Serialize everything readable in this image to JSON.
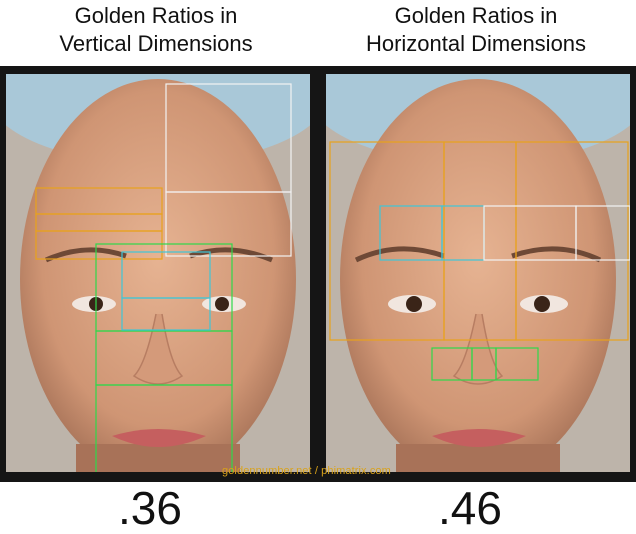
{
  "titles": {
    "left": {
      "line1": "Golden Ratios in",
      "line2": "Vertical Dimensions"
    },
    "right": {
      "line1": "Golden Ratios in",
      "line2": "Horizontal Dimensions"
    }
  },
  "credit": "goldennumber.net / phimatrix.com",
  "ratios": {
    "left": ".36",
    "right": ".46"
  },
  "colors": {
    "orange": "#e8a21c",
    "green": "#2fd84a",
    "cyan": "#3ec6d8",
    "white": "#f2f2f2",
    "skin": "#d9a07e",
    "cap": "#a9c8d8",
    "background": "#151515"
  }
}
